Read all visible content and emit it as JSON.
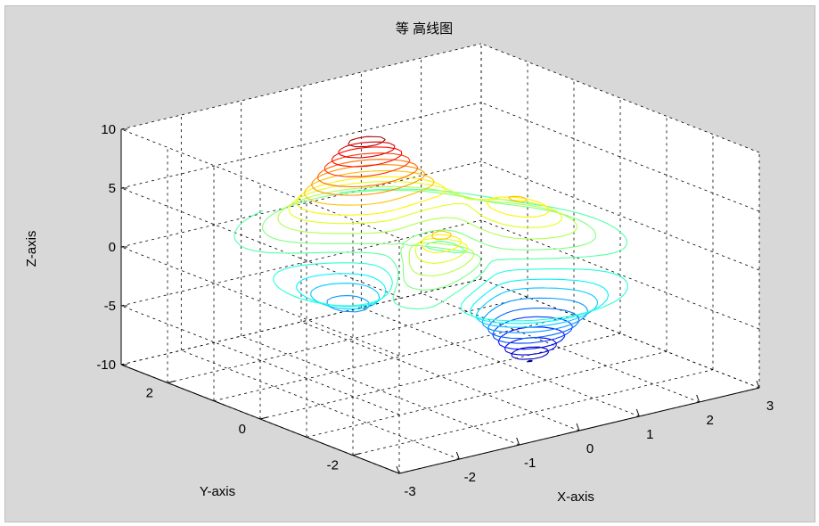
{
  "chart_data": {
    "type": "contour3",
    "title": "等 高线图",
    "xlabel": "X-axis",
    "ylabel": "Y-axis",
    "zlabel": "Z-axis",
    "xlim": [
      -3,
      3
    ],
    "ylim": [
      -3,
      3
    ],
    "zlim": [
      -10,
      10
    ],
    "xticks": [
      "-3",
      "-2",
      "-1",
      "0",
      "1",
      "2",
      "3"
    ],
    "yticks": [
      "-2",
      "0",
      "2"
    ],
    "zticks": [
      "-10",
      "-5",
      "0",
      "5",
      "10"
    ],
    "grid": true,
    "colormap": "jet",
    "levels": [
      -6.5,
      -5.8,
      -5.2,
      -4.5,
      -3.8,
      -3.2,
      -2.5,
      -1.8,
      -1.2,
      -0.5,
      0.2,
      0.8,
      1.5,
      2.2,
      2.8,
      3.5,
      4.2,
      4.8,
      5.5,
      6.2,
      6.8,
      7.5
    ],
    "color_range": [
      -6.5,
      8.1
    ],
    "function": "peaks"
  }
}
